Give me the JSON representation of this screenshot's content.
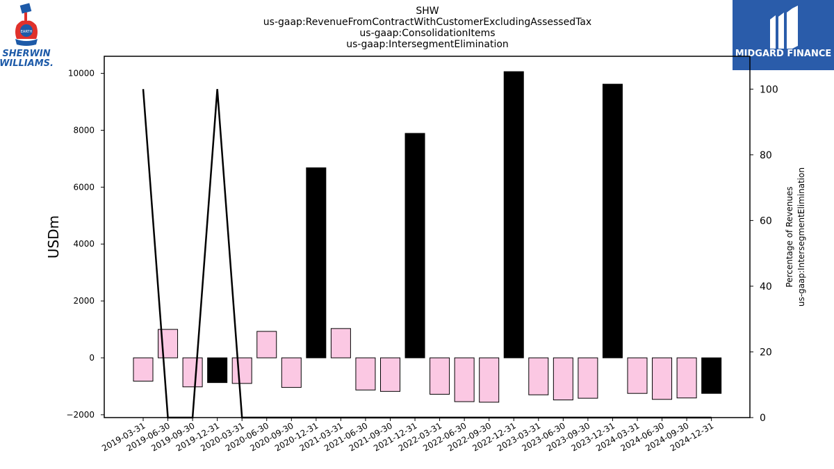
{
  "chart_data": {
    "type": "bar",
    "title_lines": [
      "SHW",
      "us-gaap:RevenueFromContractWithCustomerExcludingAssessedTax",
      "us-gaap:ConsolidationItems",
      "us-gaap:IntersegmentElimination"
    ],
    "ylabel": "USDm",
    "ylabel_right_lines": [
      "Percentage of Revenues",
      "us-gaap:IntersegmentElimination"
    ],
    "ylim": [
      -2100,
      10600
    ],
    "ylim_right": [
      0,
      110
    ],
    "yticks": [
      -2000,
      0,
      2000,
      4000,
      6000,
      8000,
      10000
    ],
    "yticks_labels": [
      "−2000",
      "0",
      "2000",
      "4000",
      "6000",
      "8000",
      "10000"
    ],
    "yticks_right": [
      0,
      20,
      40,
      60,
      80,
      100
    ],
    "categories": [
      "2019-03-31",
      "2019-06-30",
      "2019-09-30",
      "2019-12-31",
      "2020-03-31",
      "2020-06-30",
      "2020-09-30",
      "2020-12-31",
      "2021-03-31",
      "2021-06-30",
      "2021-09-30",
      "2021-12-31",
      "2022-03-31",
      "2022-06-30",
      "2022-09-30",
      "2022-12-31",
      "2023-03-31",
      "2023-06-30",
      "2023-09-30",
      "2023-12-31",
      "2024-03-31",
      "2024-06-30",
      "2024-09-30",
      "2024-12-31"
    ],
    "series": [
      {
        "type": "bar",
        "values": [
          -820,
          1000,
          -1020,
          -870,
          -900,
          930,
          -1040,
          6680,
          1030,
          -1130,
          -1180,
          7890,
          -1280,
          -1540,
          -1560,
          10060,
          -1300,
          -1480,
          -1420,
          9620,
          -1250,
          -1460,
          -1410,
          -1250
        ],
        "highlight": [
          false,
          false,
          false,
          true,
          false,
          false,
          false,
          true,
          false,
          false,
          false,
          true,
          false,
          false,
          false,
          true,
          false,
          false,
          false,
          true,
          false,
          false,
          false,
          true
        ]
      },
      {
        "type": "line",
        "axis": "right",
        "values": [
          100,
          0,
          0,
          100,
          0,
          0,
          0,
          0,
          0,
          0,
          0,
          0,
          0,
          0,
          0,
          0,
          0,
          0,
          0,
          0,
          0,
          0,
          0,
          0
        ]
      }
    ],
    "grid": false
  },
  "colors": {
    "bar_default": "#fbc8e3",
    "bar_highlight": "#000000",
    "line": "#000000",
    "midgard_bg": "#2a5caa",
    "sherwin_blue": "#1d5aa8",
    "sherwin_red": "#e0312b"
  },
  "logos": {
    "sherwin_line1": "SHERWIN",
    "sherwin_line2": "WILLIAMS.",
    "midgard": "MIDGARD FINANCE"
  }
}
